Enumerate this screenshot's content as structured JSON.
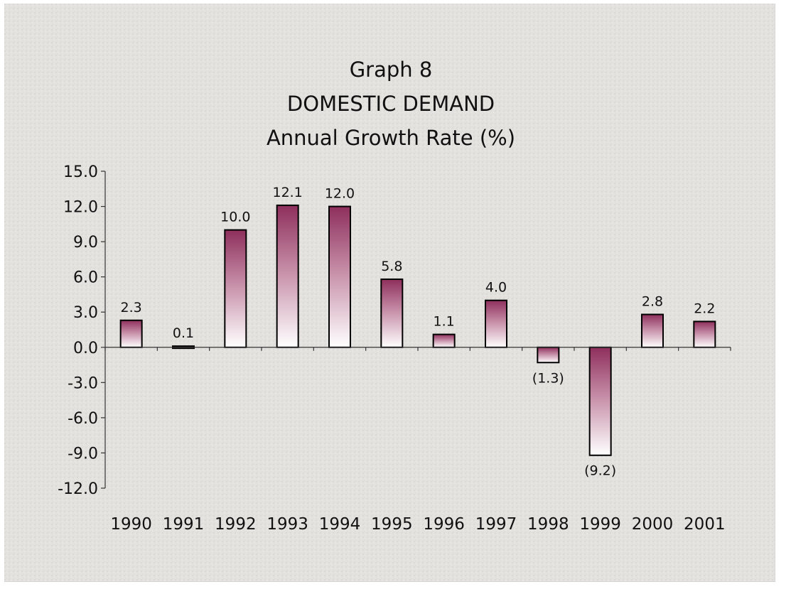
{
  "chart_data": {
    "type": "bar",
    "title": [
      "Graph 8",
      "DOMESTIC DEMAND",
      "Annual Growth Rate (%)"
    ],
    "xlabel": "",
    "ylabel": "",
    "categories": [
      "1990",
      "1991",
      "1992",
      "1993",
      "1994",
      "1995",
      "1996",
      "1997",
      "1998",
      "1999",
      "2000",
      "2001"
    ],
    "values": [
      2.3,
      0.1,
      10.0,
      12.1,
      12.0,
      5.8,
      1.1,
      4.0,
      -1.3,
      -9.2,
      2.8,
      2.2
    ],
    "data_labels": [
      "2.3",
      "0.1",
      "10.0",
      "12.1",
      "12.0",
      "5.8",
      "1.1",
      "4.0",
      "(1.3)",
      "(9.2)",
      "2.8",
      "2.2"
    ],
    "ylim": [
      -12.0,
      15.0
    ],
    "yticks": [
      15.0,
      12.0,
      9.0,
      6.0,
      3.0,
      0.0,
      -3.0,
      -6.0,
      -9.0,
      -12.0
    ],
    "ytick_labels": [
      "15.0",
      "12.0",
      "9.0",
      "6.0",
      "3.0",
      "0.0",
      "-3.0",
      "-6.0",
      "-9.0",
      "-12.0"
    ],
    "grid": false,
    "legend": "none",
    "colors": {
      "bar_top": "#8e2f5c",
      "bar_bottom": "#ffffff",
      "bar_outline": "#000000",
      "background": "#e4e2df"
    }
  }
}
